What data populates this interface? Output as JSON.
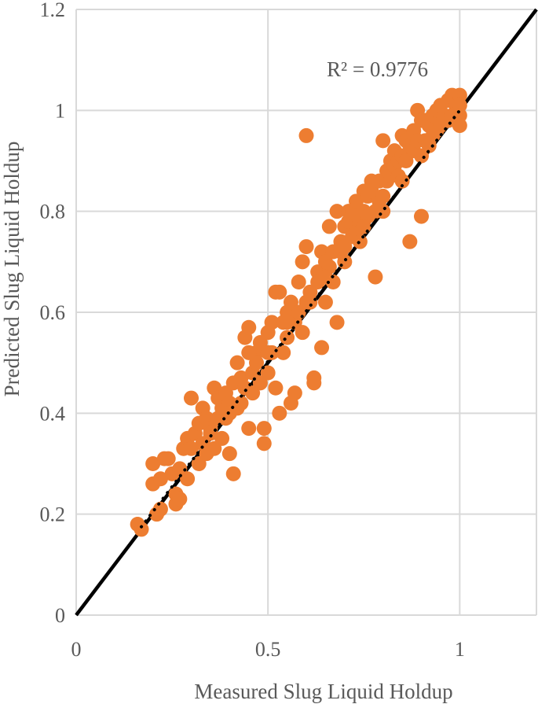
{
  "chart_data": {
    "type": "scatter",
    "xlabel": "Measured Slug Liquid Holdup",
    "ylabel": "Predicted Slug Liquid Holdup",
    "xlim": [
      0,
      1.2
    ],
    "ylim": [
      0,
      1.2
    ],
    "x_ticks": [
      "0",
      "0.5",
      "1"
    ],
    "y_ticks": [
      "0",
      "0.2",
      "0.4",
      "0.6",
      "0.8",
      "1",
      "1.2"
    ],
    "grid": true,
    "legend": "none",
    "annotation": "R² = 0.9776",
    "marker_color": "#ED7D31",
    "line_color": "#000000",
    "reference_line": {
      "x": [
        0,
        1.2
      ],
      "y": [
        0,
        1.2
      ]
    },
    "trendline": {
      "x": [
        0.17,
        1.0
      ],
      "y": [
        0.175,
        1.0
      ]
    },
    "points": [
      [
        0.16,
        0.18
      ],
      [
        0.17,
        0.17
      ],
      [
        0.2,
        0.3
      ],
      [
        0.2,
        0.26
      ],
      [
        0.21,
        0.2
      ],
      [
        0.22,
        0.21
      ],
      [
        0.22,
        0.27
      ],
      [
        0.23,
        0.31
      ],
      [
        0.24,
        0.31
      ],
      [
        0.25,
        0.28
      ],
      [
        0.26,
        0.22
      ],
      [
        0.26,
        0.24
      ],
      [
        0.27,
        0.23
      ],
      [
        0.27,
        0.29
      ],
      [
        0.28,
        0.33
      ],
      [
        0.29,
        0.27
      ],
      [
        0.29,
        0.35
      ],
      [
        0.3,
        0.43
      ],
      [
        0.3,
        0.33
      ],
      [
        0.31,
        0.36
      ],
      [
        0.32,
        0.3
      ],
      [
        0.32,
        0.38
      ],
      [
        0.33,
        0.34
      ],
      [
        0.33,
        0.41
      ],
      [
        0.34,
        0.32
      ],
      [
        0.34,
        0.39
      ],
      [
        0.35,
        0.37
      ],
      [
        0.36,
        0.45
      ],
      [
        0.36,
        0.33
      ],
      [
        0.37,
        0.39
      ],
      [
        0.37,
        0.43
      ],
      [
        0.38,
        0.35
      ],
      [
        0.38,
        0.41
      ],
      [
        0.39,
        0.44
      ],
      [
        0.39,
        0.39
      ],
      [
        0.4,
        0.32
      ],
      [
        0.4,
        0.42
      ],
      [
        0.41,
        0.28
      ],
      [
        0.41,
        0.46
      ],
      [
        0.42,
        0.5
      ],
      [
        0.42,
        0.41
      ],
      [
        0.43,
        0.47
      ],
      [
        0.43,
        0.42
      ],
      [
        0.44,
        0.55
      ],
      [
        0.44,
        0.45
      ],
      [
        0.45,
        0.57
      ],
      [
        0.45,
        0.37
      ],
      [
        0.46,
        0.48
      ],
      [
        0.46,
        0.44
      ],
      [
        0.47,
        0.52
      ],
      [
        0.47,
        0.5
      ],
      [
        0.48,
        0.54
      ],
      [
        0.48,
        0.46
      ],
      [
        0.49,
        0.34
      ],
      [
        0.49,
        0.37
      ],
      [
        0.5,
        0.56
      ],
      [
        0.5,
        0.48
      ],
      [
        0.51,
        0.58
      ],
      [
        0.51,
        0.52
      ],
      [
        0.52,
        0.64
      ],
      [
        0.52,
        0.45
      ],
      [
        0.53,
        0.64
      ],
      [
        0.53,
        0.4
      ],
      [
        0.54,
        0.58
      ],
      [
        0.54,
        0.52
      ],
      [
        0.55,
        0.6
      ],
      [
        0.55,
        0.55
      ],
      [
        0.56,
        0.62
      ],
      [
        0.56,
        0.42
      ],
      [
        0.57,
        0.44
      ],
      [
        0.57,
        0.58
      ],
      [
        0.58,
        0.66
      ],
      [
        0.58,
        0.6
      ],
      [
        0.59,
        0.7
      ],
      [
        0.59,
        0.56
      ],
      [
        0.6,
        0.95
      ],
      [
        0.6,
        0.73
      ],
      [
        0.61,
        0.64
      ],
      [
        0.61,
        0.62
      ],
      [
        0.62,
        0.47
      ],
      [
        0.62,
        0.46
      ],
      [
        0.63,
        0.68
      ],
      [
        0.63,
        0.66
      ],
      [
        0.64,
        0.72
      ],
      [
        0.64,
        0.53
      ],
      [
        0.65,
        0.7
      ],
      [
        0.65,
        0.62
      ],
      [
        0.66,
        0.77
      ],
      [
        0.66,
        0.69
      ],
      [
        0.67,
        0.72
      ],
      [
        0.67,
        0.66
      ],
      [
        0.68,
        0.8
      ],
      [
        0.68,
        0.58
      ],
      [
        0.69,
        0.74
      ],
      [
        0.69,
        0.72
      ],
      [
        0.7,
        0.77
      ],
      [
        0.7,
        0.73
      ],
      [
        0.71,
        0.8
      ],
      [
        0.71,
        0.78
      ],
      [
        0.72,
        0.8
      ],
      [
        0.72,
        0.75
      ],
      [
        0.73,
        0.82
      ],
      [
        0.73,
        0.76
      ],
      [
        0.74,
        0.78
      ],
      [
        0.74,
        0.74
      ],
      [
        0.75,
        0.84
      ],
      [
        0.75,
        0.8
      ],
      [
        0.76,
        0.83
      ],
      [
        0.76,
        0.79
      ],
      [
        0.77,
        0.86
      ],
      [
        0.77,
        0.84
      ],
      [
        0.78,
        0.67
      ],
      [
        0.78,
        0.8
      ],
      [
        0.79,
        0.86
      ],
      [
        0.79,
        0.82
      ],
      [
        0.8,
        0.94
      ],
      [
        0.8,
        0.83
      ],
      [
        0.81,
        0.88
      ],
      [
        0.81,
        0.86
      ],
      [
        0.82,
        0.9
      ],
      [
        0.82,
        0.87
      ],
      [
        0.83,
        0.92
      ],
      [
        0.83,
        0.89
      ],
      [
        0.84,
        0.9
      ],
      [
        0.84,
        0.87
      ],
      [
        0.85,
        0.95
      ],
      [
        0.85,
        0.91
      ],
      [
        0.86,
        0.94
      ],
      [
        0.86,
        0.9
      ],
      [
        0.87,
        0.74
      ],
      [
        0.87,
        0.93
      ],
      [
        0.88,
        0.96
      ],
      [
        0.88,
        0.92
      ],
      [
        0.89,
        1.0
      ],
      [
        0.89,
        0.94
      ],
      [
        0.9,
        0.98
      ],
      [
        0.9,
        0.79
      ],
      [
        0.91,
        0.98
      ],
      [
        0.91,
        0.94
      ],
      [
        0.92,
        0.97
      ],
      [
        0.92,
        0.93
      ],
      [
        0.93,
        0.99
      ],
      [
        0.93,
        0.95
      ],
      [
        0.94,
        1.0
      ],
      [
        0.94,
        0.96
      ],
      [
        0.95,
        1.01
      ],
      [
        0.95,
        0.97
      ],
      [
        0.96,
        0.99
      ],
      [
        0.97,
        1.02
      ],
      [
        0.97,
        0.98
      ],
      [
        0.98,
        1.03
      ],
      [
        0.98,
        0.99
      ],
      [
        0.99,
        1.01
      ],
      [
        0.99,
        0.98
      ],
      [
        1.0,
        1.03
      ],
      [
        1.0,
        1.01
      ],
      [
        1.0,
        0.99
      ],
      [
        1.0,
        0.97
      ],
      [
        0.45,
        0.52
      ],
      [
        0.5,
        0.52
      ],
      [
        0.55,
        0.58
      ],
      [
        0.6,
        0.62
      ],
      [
        0.65,
        0.67
      ],
      [
        0.7,
        0.7
      ],
      [
        0.75,
        0.77
      ],
      [
        0.8,
        0.8
      ],
      [
        0.85,
        0.86
      ],
      [
        0.9,
        0.91
      ],
      [
        0.35,
        0.36
      ],
      [
        0.4,
        0.4
      ]
    ]
  }
}
